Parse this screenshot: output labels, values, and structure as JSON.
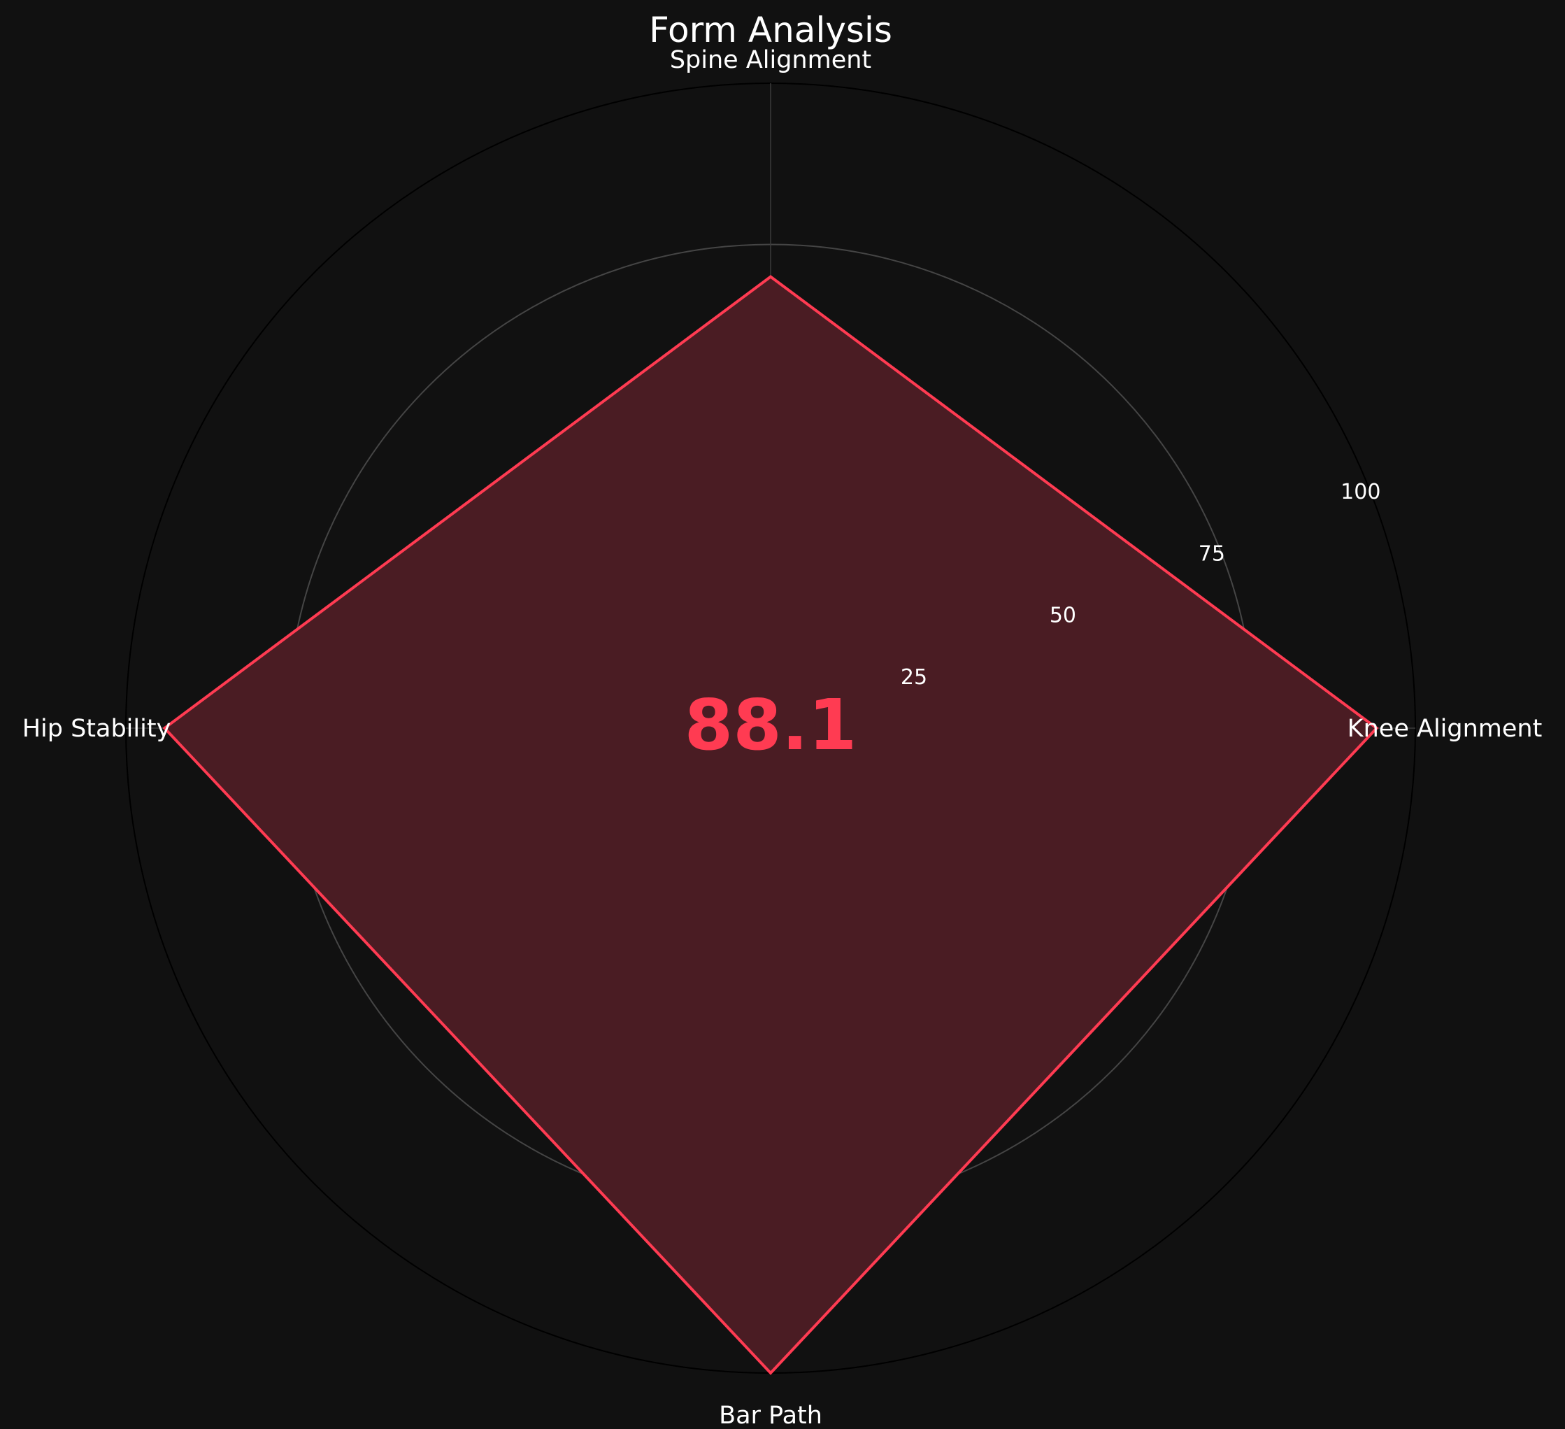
{
  "chart_data": {
    "type": "radar",
    "title": "Form Analysis",
    "axes": [
      "Spine Alignment",
      "Knee Alignment",
      "Bar Path",
      "Hip Stability"
    ],
    "series": [
      {
        "values": [
          70.0,
          94.0,
          100.0,
          94.0
        ]
      }
    ],
    "rlim": [
      0,
      100
    ],
    "rticks": [
      25,
      50,
      75,
      100
    ],
    "grid": true,
    "center_score": "88.1",
    "colors": {
      "background": "#111111",
      "series_line": "#ff3b52",
      "series_fill": "#4a1c23",
      "score": "#ff3b52"
    }
  }
}
